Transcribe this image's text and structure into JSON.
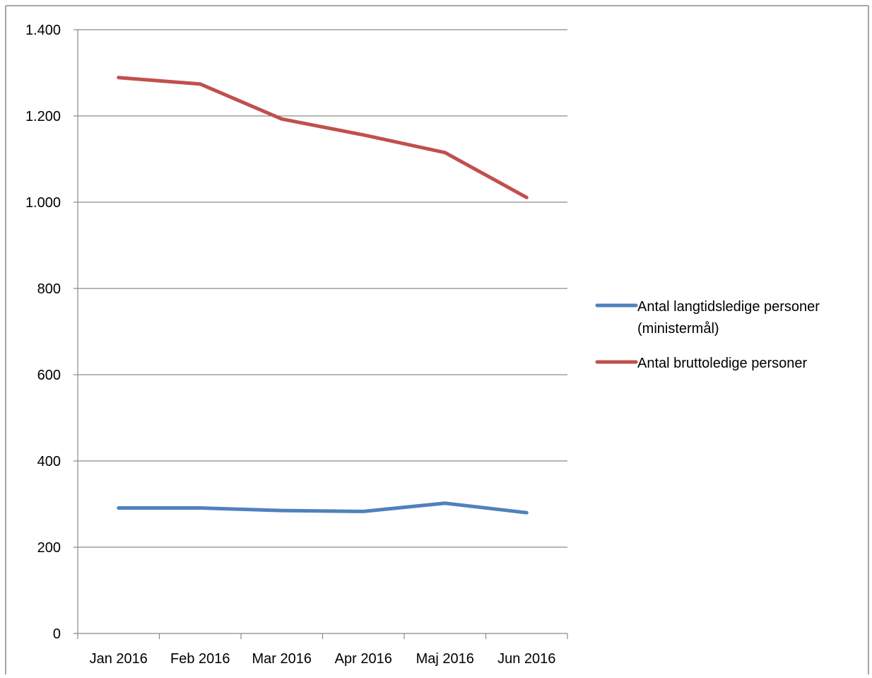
{
  "chart_data": {
    "type": "line",
    "title": "",
    "xlabel": "",
    "ylabel": "",
    "categories": [
      "Jan 2016",
      "Feb 2016",
      "Mar 2016",
      "Apr 2016",
      "Maj 2016",
      "Jun 2016"
    ],
    "ylim": [
      0,
      1400
    ],
    "yticks": [
      0,
      200,
      400,
      600,
      800,
      1000,
      1200,
      1400
    ],
    "ytick_labels": [
      "0",
      "200",
      "400",
      "600",
      "800",
      "1.000",
      "1.200",
      "1.400"
    ],
    "grid": "horizontal",
    "legend_position": "right",
    "series": [
      {
        "name_lines": [
          "Antal langtidsledige personer",
          "(ministermål)"
        ],
        "color": "#4F81BD",
        "values": [
          291,
          291,
          285,
          283,
          302,
          280
        ]
      },
      {
        "name_lines": [
          "Antal bruttoledige personer"
        ],
        "color": "#C0504D",
        "values": [
          1289,
          1274,
          1193,
          1156,
          1115,
          1011
        ]
      }
    ]
  }
}
